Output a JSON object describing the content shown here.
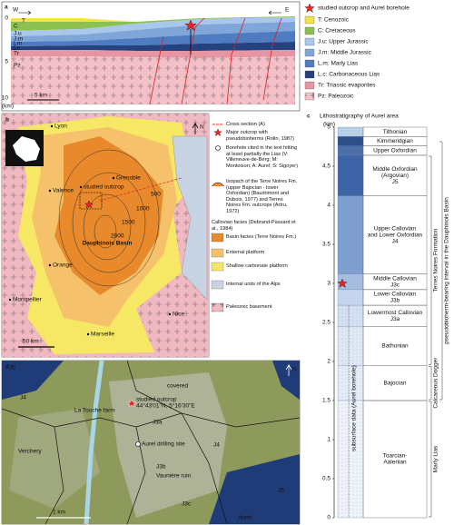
{
  "panel_a": {
    "label": "a",
    "west": "W",
    "east": "E",
    "depth_ticks": [
      0,
      5,
      10
    ],
    "depth_unit": "(km)",
    "scale": "5 km",
    "layers": [
      "T",
      "C",
      "J.u",
      "J.m",
      "Lm",
      "Lc",
      "Tr",
      "Pz"
    ],
    "star_legend": "studied outcrop and Aurel borehole",
    "legend": [
      {
        "label": "T: Cenozoic",
        "color": "#f2e24a"
      },
      {
        "label": "C: Cretaceous",
        "color": "#8cc152"
      },
      {
        "label": "J.u: Upper Jurassic",
        "color": "#a9c7ea"
      },
      {
        "label": "J.m: Middle Jurassic",
        "color": "#7ea6d8"
      },
      {
        "label": "L.m: Marly Lias",
        "color": "#4f7bc0"
      },
      {
        "label": "L.c: Carbonaceous Lias",
        "color": "#23427f"
      },
      {
        "label": "Tr: Triassic evaporites",
        "color": "#e596a2"
      },
      {
        "label": "Pz: Paleozoic",
        "color": "#f2c0c6"
      }
    ]
  },
  "panel_b": {
    "label": "b",
    "north": "N",
    "scale": "50 km",
    "basin": "Dauphinois Basin",
    "places": [
      "Lyon",
      "Grenoble",
      "Valence",
      "studied outcrop",
      "Orange",
      "Montpellier",
      "Marseille",
      "Nice"
    ],
    "isopachs": [
      "500",
      "1000",
      "1500",
      "2000"
    ],
    "legend": [
      {
        "label": "Cross section (A)"
      },
      {
        "label": "Major outcrop with pseudobioherms (Rolin, 1987)"
      },
      {
        "label": "Borehole cited in the text hitting at least partially the Lias (V: Villeneuve-de-Berg; M: Montoison; A: Aurel; S: Sigoyer)"
      },
      {
        "label": "Isopach of the Terre Noires Fm. (upper Bajocian - lower Oxfordian) (Baudrimont and Dubois, 1977) and Terres Noires Fm. outcrops (Artru, 1972)"
      },
      {
        "label": "Callovian facies (Debrand-Passard et al., 1984)"
      },
      {
        "label": "Basin facies (Terre Noires Fm.)",
        "color": "#e8892b"
      },
      {
        "label": "External platform",
        "color": "#f5c26b"
      },
      {
        "label": "Shallow carbonate platform",
        "color": "#f6e765"
      },
      {
        "label": "Internal units of the Alps",
        "color": "#c7d3e3"
      },
      {
        "label": "Paleozoic basement",
        "color": "#f0b8c0"
      }
    ]
  },
  "panel_c": {
    "label": "c",
    "title": "Lithostratigraphy of Aurel area",
    "axis_unit": "(km)",
    "lim": [
      0,
      5
    ],
    "ticks": [
      0,
      0.5,
      1,
      1.5,
      2,
      2.5,
      3,
      3.5,
      4,
      4.5,
      5
    ],
    "star_depth": 3.0,
    "subsurface": "subsurface data (Aurel borehole)",
    "units": [
      {
        "lines": [
          "Tithonian"
        ],
        "top": 5,
        "base": 4.88,
        "color": "#b9cfe8"
      },
      {
        "lines": [
          "Kimmeridgian"
        ],
        "top": 4.88,
        "base": 4.76,
        "color": "#2c4f8c"
      },
      {
        "lines": [
          "Upper Oxfordian"
        ],
        "top": 4.76,
        "base": 4.64,
        "color": "#4d6fa8"
      },
      {
        "lines": [
          "Middle Oxfordian",
          "(Argovian)",
          "J5"
        ],
        "top": 4.64,
        "base": 4.12,
        "color": "#3f64a6"
      },
      {
        "lines": [
          "Upper Callovian",
          "and Lower Oxfordian",
          "J4"
        ],
        "top": 4.12,
        "base": 3.12,
        "color": "#7e9fd0"
      },
      {
        "lines": [
          "Middle Callovian",
          "J3c"
        ],
        "top": 3.12,
        "base": 2.92,
        "color": "#a7bde0"
      },
      {
        "lines": [
          "Lower Callovian",
          "J3b"
        ],
        "top": 2.92,
        "base": 2.72,
        "color": "#c5d4ec"
      },
      {
        "lines": [
          "Lowermost Callovian",
          "J3a"
        ],
        "top": 2.72,
        "base": 2.45,
        "color": "#d4e0f1"
      },
      {
        "lines": [
          "Bathonian"
        ],
        "top": 2.45,
        "base": 1.95,
        "color": "#e0e8f5"
      },
      {
        "lines": [
          "Bajocian"
        ],
        "top": 1.95,
        "base": 1.5,
        "color": "#e6edf7"
      },
      {
        "lines": [
          "Toarcian-",
          "Aalenian"
        ],
        "top": 1.5,
        "base": 0,
        "color": "#eef3fa"
      }
    ],
    "groups": [
      "pseudobioherm-bearing interval in the Dauphinois Basin",
      "Terres Noires Formation",
      "Calcareous Dogger",
      "Marly Lias"
    ]
  },
  "panel_d": {
    "label": "d",
    "north": "N",
    "scale": "1 km",
    "labels": [
      "La Touche farm",
      "studied outcrop",
      "44°43'01\"N, 5°16'30\"E",
      "Aurel drilling site",
      "Vaunière ruin",
      "Verchery",
      "Aurel",
      "covered",
      "J4",
      "J4",
      "J5",
      "J5",
      "J3a",
      "J3b",
      "J3c"
    ]
  }
}
